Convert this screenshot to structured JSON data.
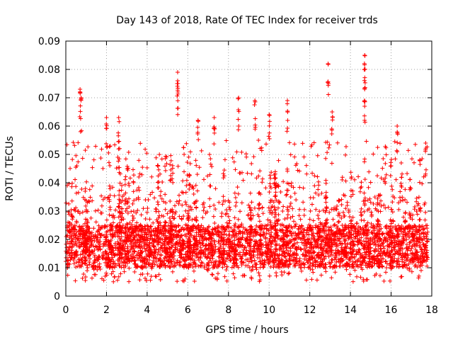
{
  "chart_data": {
    "type": "scatter",
    "title": "Day 143 of 2018, Rate Of TEC Index for receiver trds",
    "xlabel": "GPS time / hours",
    "ylabel": "ROTI / TECUs",
    "xlim": [
      0,
      18
    ],
    "ylim": [
      0,
      0.09
    ],
    "xticks": [
      "0",
      "2",
      "4",
      "6",
      "8",
      "10",
      "12",
      "14",
      "16",
      "18"
    ],
    "yticks": [
      "0",
      "0.01",
      "0.02",
      "0.03",
      "0.04",
      "0.05",
      "0.06",
      "0.07",
      "0.08",
      "0.09"
    ],
    "grid": true,
    "marker": "+",
    "series": [
      {
        "name": "ROTI",
        "color": "#ff0000",
        "typical_range": [
          0.01,
          0.025
        ],
        "spikes": [
          {
            "x": 0.7,
            "y": 0.073
          },
          {
            "x": 0.75,
            "y": 0.07
          },
          {
            "x": 2.0,
            "y": 0.063
          },
          {
            "x": 2.6,
            "y": 0.063
          },
          {
            "x": 5.5,
            "y": 0.079
          },
          {
            "x": 5.5,
            "y": 0.076
          },
          {
            "x": 6.5,
            "y": 0.062
          },
          {
            "x": 7.3,
            "y": 0.063
          },
          {
            "x": 8.5,
            "y": 0.07
          },
          {
            "x": 9.3,
            "y": 0.069
          },
          {
            "x": 10.0,
            "y": 0.064
          },
          {
            "x": 10.9,
            "y": 0.069
          },
          {
            "x": 12.9,
            "y": 0.082
          },
          {
            "x": 13.1,
            "y": 0.065
          },
          {
            "x": 14.7,
            "y": 0.085
          },
          {
            "x": 14.7,
            "y": 0.08
          },
          {
            "x": 14.7,
            "y": 0.073
          },
          {
            "x": 16.3,
            "y": 0.06
          },
          {
            "x": 17.7,
            "y": 0.054
          }
        ]
      }
    ]
  }
}
